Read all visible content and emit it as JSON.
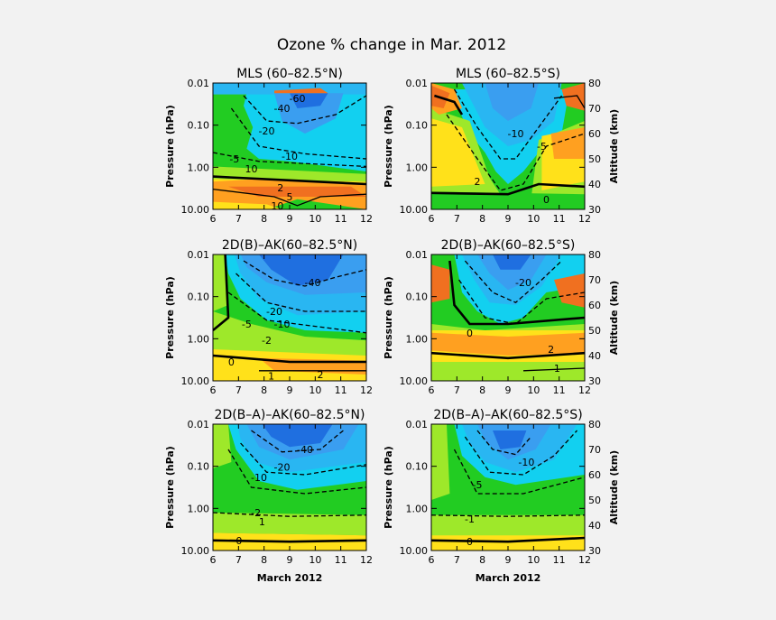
{
  "figure": {
    "title": "Ozone % change in Mar. 2012"
  },
  "axes_common": {
    "pressure_label": "Pressure (hPa)",
    "altitude_label": "Altitude (km)",
    "x_label": "March 2012"
  },
  "chart_data": [
    {
      "type": "contour",
      "title": "MLS (60–82.5°N)",
      "x": [
        6,
        7,
        8,
        9,
        10,
        11,
        12
      ],
      "x_ticks": [
        "6",
        "7",
        "8",
        "9",
        "10",
        "11",
        "12"
      ],
      "y_ticks": [
        "0.01",
        "0.10",
        "1.00",
        "10.00"
      ],
      "ylabel": "Pressure (hPa)",
      "xlabel": "",
      "y2_ticks": [],
      "y2label": "",
      "contour_labels": [
        "-60",
        "-40",
        "-20",
        "-5",
        "-10",
        "10",
        "5",
        "2",
        "10"
      ],
      "ylim": [
        10.0,
        0.01
      ]
    },
    {
      "type": "contour",
      "title": "MLS (60–82.5°S)",
      "x": [
        6,
        7,
        8,
        9,
        10,
        11,
        12
      ],
      "x_ticks": [
        "6",
        "7",
        "8",
        "9",
        "10",
        "11",
        "12"
      ],
      "y_ticks": [
        "0.01",
        "0.10",
        "1.00",
        "10.00"
      ],
      "ylabel": "Pressure (hPa)",
      "xlabel": "",
      "y2_ticks": [
        "80",
        "70",
        "60",
        "50",
        "40",
        "30"
      ],
      "y2label": "Altitude (km)",
      "contour_labels": [
        "-10",
        "-5",
        "2",
        "0"
      ],
      "ylim": [
        10.0,
        0.01
      ]
    },
    {
      "type": "contour",
      "title": "2D(B)–AK(60–82.5°N)",
      "x": [
        6,
        7,
        8,
        9,
        10,
        11,
        12
      ],
      "x_ticks": [
        "6",
        "7",
        "8",
        "9",
        "10",
        "11",
        "12"
      ],
      "y_ticks": [
        "0.01",
        "0.10",
        "1.00",
        "10.00"
      ],
      "ylabel": "Pressure (hPa)",
      "xlabel": "",
      "y2_ticks": [],
      "y2label": "",
      "contour_labels": [
        "-40",
        "-20",
        "-10",
        "-5",
        "-2",
        "0",
        "1",
        "2"
      ],
      "ylim": [
        10.0,
        0.01
      ]
    },
    {
      "type": "contour",
      "title": "2D(B)–AK(60–82.5°S)",
      "x": [
        6,
        7,
        8,
        9,
        10,
        11,
        12
      ],
      "x_ticks": [
        "6",
        "7",
        "8",
        "9",
        "10",
        "11",
        "12"
      ],
      "y_ticks": [
        "0.01",
        "0.10",
        "1.00",
        "10.00"
      ],
      "ylabel": "Pressure (hPa)",
      "xlabel": "",
      "y2_ticks": [
        "80",
        "70",
        "60",
        "50",
        "40",
        "30"
      ],
      "y2label": "Altitude (km)",
      "contour_labels": [
        "-20",
        "0",
        "2",
        "1"
      ],
      "ylim": [
        10.0,
        0.01
      ]
    },
    {
      "type": "contour",
      "title": "2D(B–A)–AK(60–82.5°N)",
      "x": [
        6,
        7,
        8,
        9,
        10,
        11,
        12
      ],
      "x_ticks": [
        "6",
        "7",
        "8",
        "9",
        "10",
        "11",
        "12"
      ],
      "y_ticks": [
        "0.01",
        "0.10",
        "1.00",
        "10.00"
      ],
      "ylabel": "Pressure (hPa)",
      "xlabel": "March 2012",
      "y2_ticks": [],
      "y2label": "",
      "contour_labels": [
        "-40",
        "-20",
        "-10",
        "-2",
        "1",
        "0"
      ],
      "ylim": [
        10.0,
        0.01
      ]
    },
    {
      "type": "contour",
      "title": "2D(B–A)–AK(60–82.5°S)",
      "x": [
        6,
        7,
        8,
        9,
        10,
        11,
        12
      ],
      "x_ticks": [
        "6",
        "7",
        "8",
        "9",
        "10",
        "11",
        "12"
      ],
      "y_ticks": [
        "0.01",
        "0.10",
        "1.00",
        "10.00"
      ],
      "ylabel": "Pressure (hPa)",
      "xlabel": "March 2012",
      "y2_ticks": [
        "80",
        "70",
        "60",
        "50",
        "40",
        "30"
      ],
      "y2label": "Altitude (km)",
      "contour_labels": [
        "-10",
        "-5",
        "-1",
        "0"
      ],
      "ylim": [
        10.0,
        0.01
      ]
    }
  ],
  "colors": {
    "deep_blue": "#1f6fe0",
    "mid_blue": "#3a9ef0",
    "light_blue": "#29b6f2",
    "cyan": "#12d0f0",
    "green": "#22cc22",
    "lime": "#9ee82a",
    "yellow": "#ffe11a",
    "orange": "#ffa020",
    "dark_orange": "#f07020",
    "background": "#f2f2f2"
  }
}
